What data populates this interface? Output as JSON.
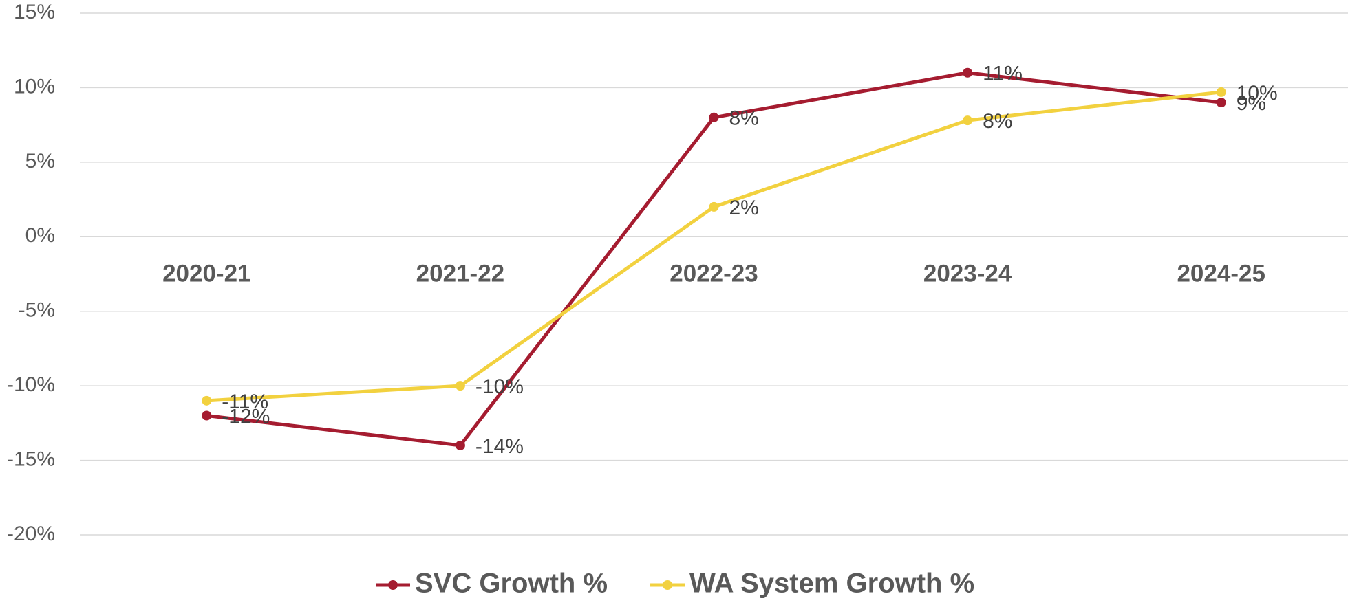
{
  "chart_data": {
    "type": "line",
    "categories": [
      "2020-21",
      "2021-22",
      "2022-23",
      "2023-24",
      "2024-25"
    ],
    "series": [
      {
        "name": "SVC Growth %",
        "color": "#a51c30",
        "values": [
          -12,
          -14,
          8,
          11,
          9
        ],
        "value_labels": [
          "-12%",
          "-14%",
          "8%",
          "11%",
          "9%"
        ]
      },
      {
        "name": "WA System Growth %",
        "color": "#f2d13f",
        "values": [
          -11,
          -10,
          2,
          7.8,
          9.7
        ],
        "value_labels": [
          "-11%",
          "-10%",
          "2%",
          "8%",
          "10%"
        ]
      }
    ],
    "ylim": [
      -20,
      15
    ],
    "yticks": [
      {
        "value": -20,
        "label": "-20%"
      },
      {
        "value": -15,
        "label": "-15%"
      },
      {
        "value": -10,
        "label": "-10%"
      },
      {
        "value": -5,
        "label": "-5%"
      },
      {
        "value": 0,
        "label": "0%"
      },
      {
        "value": 5,
        "label": "5%"
      },
      {
        "value": 10,
        "label": "10%"
      },
      {
        "value": 15,
        "label": "15%"
      }
    ],
    "grid": true,
    "legend": "bottom"
  }
}
